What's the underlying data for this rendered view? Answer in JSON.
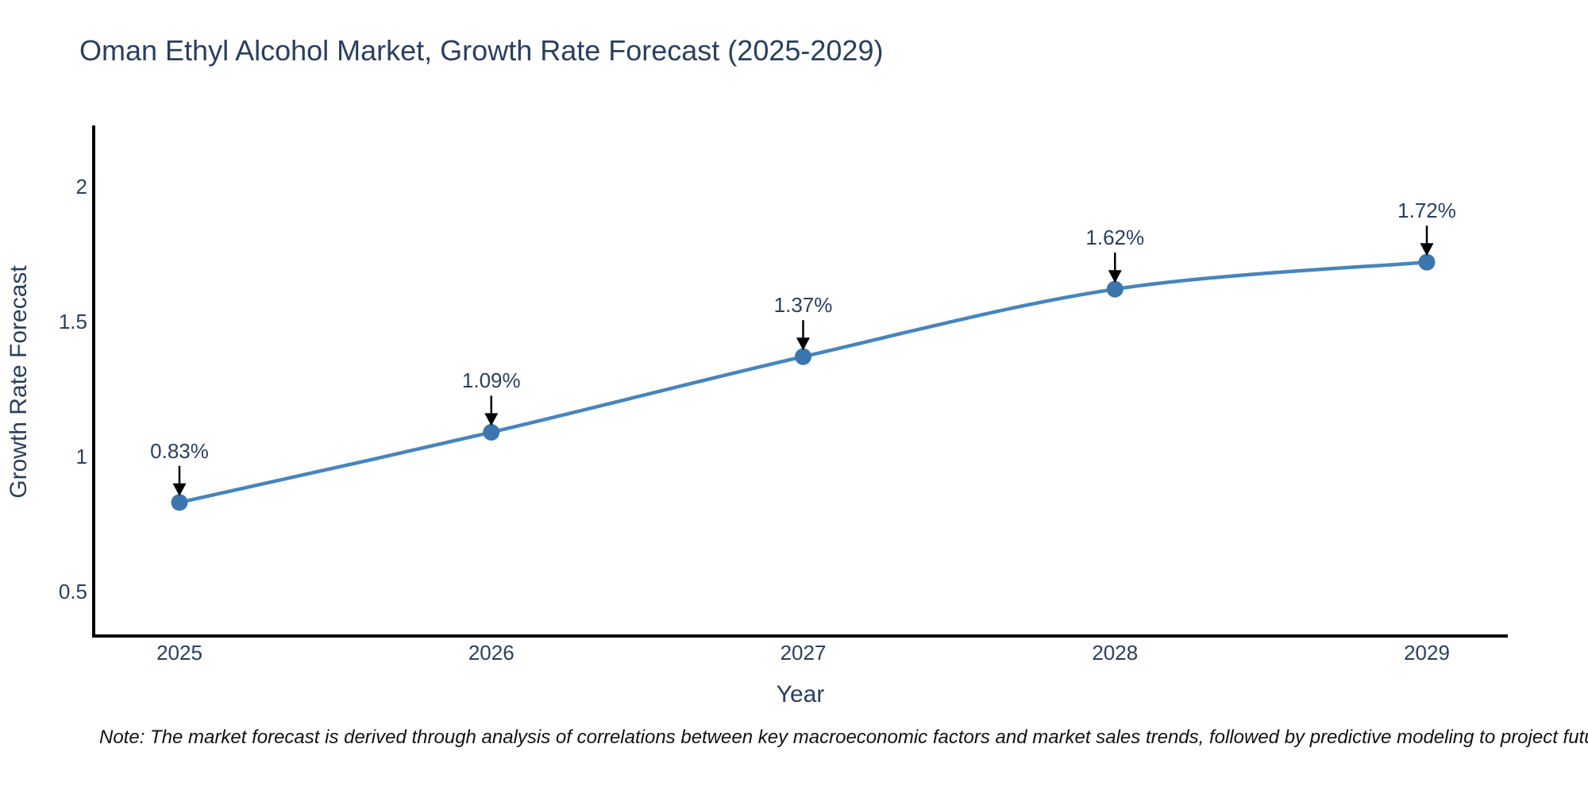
{
  "chart_data": {
    "type": "line",
    "title": "Oman Ethyl Alcohol Market, Growth Rate Forecast (2025-2029)",
    "xlabel": "Year",
    "ylabel": "Growth Rate Forecast",
    "x": [
      2025,
      2026,
      2027,
      2028,
      2029
    ],
    "series": [
      {
        "name": "Growth Rate Forecast",
        "values": [
          0.83,
          1.09,
          1.37,
          1.62,
          1.72
        ]
      }
    ],
    "point_labels": [
      "0.83%",
      "1.09%",
      "1.37%",
      "1.62%",
      "1.72%"
    ],
    "xtick_labels": [
      "2025",
      "2026",
      "2027",
      "2028",
      "2029"
    ],
    "yticks": [
      0.5,
      1,
      1.5,
      2
    ],
    "ytick_labels": [
      "0.5",
      "1",
      "1.5",
      "2"
    ],
    "ylim": [
      0.34,
      2.22
    ],
    "grid": false,
    "legend": "none",
    "line_style": "smooth",
    "line_color": "#4685bd",
    "marker_color": "#3c76ae",
    "arrow_color": "#000000",
    "axis_color": "#000000",
    "text_color": "#2a3f5f",
    "background_color": "#ffffff",
    "note": "Note: The market forecast is derived through analysis of correlations between key macroeconomic factors and market sales trends, followed by predictive modeling to project future sales"
  }
}
